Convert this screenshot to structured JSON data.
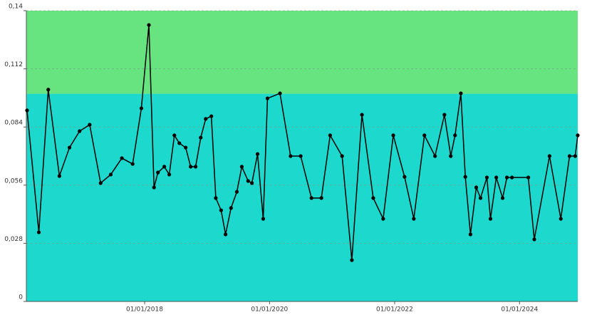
{
  "chart_data": {
    "type": "line",
    "x": [
      "14/02/2016",
      "23/04/2016",
      "17/06/2016",
      "21/08/2016",
      "19/10/2016",
      "17/12/2016",
      "14/02/2017",
      "19/04/2017",
      "17/06/2017",
      "21/08/2017",
      "23/10/2017",
      "13/12/2017",
      "26/01/2018",
      "25/02/2018",
      "20/03/2018",
      "26/04/2018",
      "25/05/2018",
      "24/06/2018",
      "23/07/2018",
      "29/08/2018",
      "27/09/2018",
      "26/10/2018",
      "25/11/2018",
      "24/12/2018",
      "26/01/2019",
      "21/02/2019",
      "24/03/2019",
      "19/04/2019",
      "21/05/2019",
      "24/06/2019",
      "23/07/2019",
      "29/08/2019",
      "20/09/2019",
      "23/10/2019",
      "25/11/2019",
      "20/12/2019",
      "02/03/2020",
      "03/05/2020",
      "01/07/2020",
      "02/09/2020",
      "30/10/2020",
      "20/12/2020",
      "28/02/2021",
      "26/04/2021",
      "24/06/2021",
      "29/08/2021",
      "26/10/2021",
      "24/12/2021",
      "28/02/2022",
      "23/04/2022",
      "24/06/2022",
      "25/08/2022",
      "19/10/2022",
      "25/11/2022",
      "20/12/2022",
      "23/01/2023",
      "18/02/2023",
      "20/03/2023",
      "23/04/2023",
      "18/05/2023",
      "24/06/2023",
      "15/07/2023",
      "18/08/2023",
      "24/09/2023",
      "19/10/2023",
      "18/11/2023",
      "21/02/2024",
      "27/03/2024",
      "24/06/2024",
      "29/08/2024",
      "19/10/2024",
      "21/11/2024",
      "06/12/2024"
    ],
    "series": [
      {
        "color": "#000000",
        "values": [
          0.092,
          0.0333,
          0.102,
          0.0604,
          0.0741,
          0.082,
          0.0851,
          0.057,
          0.0611,
          0.069,
          0.0662,
          0.093,
          0.1331,
          0.0549,
          0.0621,
          0.0649,
          0.0611,
          0.08,
          0.0762,
          0.0741,
          0.0649,
          0.0649,
          0.0789,
          0.0879,
          0.0892,
          0.0498,
          0.0439,
          0.0323,
          0.045,
          0.0528,
          0.0649,
          0.058,
          0.057,
          0.071,
          0.0398,
          0.0978,
          0.1002,
          0.07,
          0.07,
          0.0498,
          0.0498,
          0.08,
          0.07,
          0.0199,
          0.0899,
          0.0498,
          0.0398,
          0.08,
          0.06,
          0.0398,
          0.08,
          0.07,
          0.0899,
          0.07,
          0.08,
          0.1002,
          0.06,
          0.0323,
          0.0549,
          0.0498,
          0.0597,
          0.0398,
          0.0597,
          0.0498,
          0.0597,
          0.0597,
          0.0597,
          0.0299,
          0.07,
          0.0398,
          0.07,
          0.07,
          0.08
        ]
      }
    ],
    "xlim": [
      "10/02/2016",
      "06/12/2024"
    ],
    "xticks": [
      "01/01/2018",
      "01/01/2020",
      "01/01/2022",
      "01/01/2024"
    ],
    "ylim": [
      0,
      0.14
    ],
    "yticks": [
      0,
      {
        "value": 0.028,
        "label": "0,028"
      },
      {
        "value": 0.056,
        "label": "0,056"
      },
      {
        "value": 0.084,
        "label": "0,084"
      },
      {
        "value": 0.112,
        "label": "0,112"
      },
      {
        "value": 0.14,
        "label": "0,14"
      }
    ],
    "bands": [
      {
        "from": 0,
        "to": 0.1,
        "color": "#1dd8cd"
      },
      {
        "from": 0.1,
        "to": 0.14,
        "color": "#67e47f"
      }
    ],
    "grid": true
  }
}
